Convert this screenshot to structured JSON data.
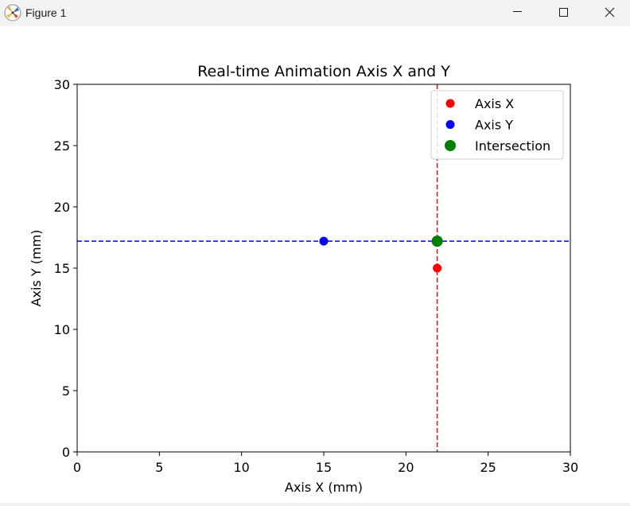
{
  "window": {
    "title": "Figure 1",
    "icons": {
      "app": "matplotlib-figure-icon",
      "minimize": "minimize-icon",
      "maximize": "maximize-icon",
      "close": "close-icon"
    }
  },
  "chart_data": {
    "type": "scatter",
    "title": "Real-time Animation Axis X and Y",
    "xlabel": "Axis X (mm)",
    "ylabel": "Axis Y (mm)",
    "xlim": [
      0,
      30
    ],
    "ylim": [
      0,
      30
    ],
    "xticks": [
      0,
      5,
      10,
      15,
      20,
      25,
      30
    ],
    "yticks": [
      0,
      5,
      10,
      15,
      20,
      25,
      30
    ],
    "grid": false,
    "legend_position": "top-right",
    "series": [
      {
        "name": "Axis X",
        "color": "#ff0000",
        "marker": "circle",
        "points": [
          {
            "x": 21.9,
            "y": 15
          }
        ]
      },
      {
        "name": "Axis Y",
        "color": "#0000ff",
        "marker": "circle",
        "points": [
          {
            "x": 15,
            "y": 17.2
          }
        ]
      },
      {
        "name": "Intersection",
        "color": "#008000",
        "marker": "circle-large",
        "points": [
          {
            "x": 21.9,
            "y": 17.2
          }
        ]
      }
    ],
    "reference_lines": [
      {
        "orientation": "vertical",
        "x": 21.9,
        "color": "#ff0000",
        "style": "dashed"
      },
      {
        "orientation": "horizontal",
        "y": 17.2,
        "color": "#0000ff",
        "style": "dashed"
      }
    ]
  }
}
